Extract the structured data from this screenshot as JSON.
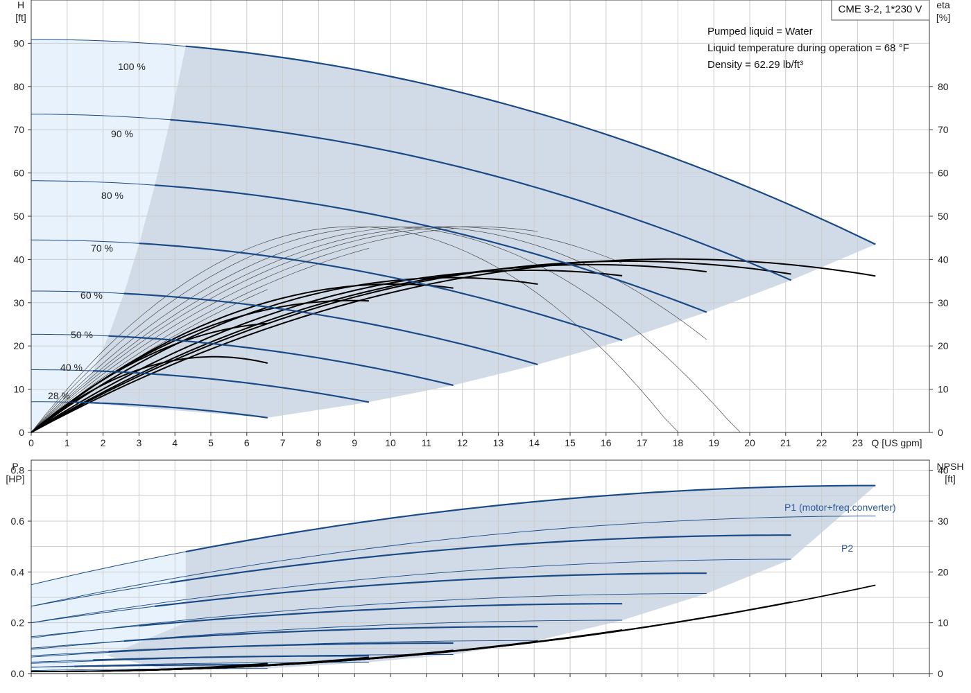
{
  "model_label": "CME 3-2, 1*230 V",
  "notes": [
    "Pumped liquid = Water",
    "Liquid temperature during operation = 68 °F",
    "Density = 62.29 lb/ft³"
  ],
  "colors": {
    "curve_blue": "#1a4a86",
    "fill_region": "#d1dbe7",
    "fill_light": "#e8f2fc",
    "grid": "#cccccc",
    "eff_black": "#000000",
    "p2_label": "#2a5a9a"
  },
  "chart_data": [
    {
      "type": "line",
      "title": "",
      "x_axis": {
        "label": "Q [US gpm]",
        "range": [
          0,
          25
        ],
        "ticks": [
          0,
          1,
          2,
          3,
          4,
          5,
          6,
          7,
          8,
          9,
          10,
          11,
          12,
          13,
          14,
          15,
          16,
          17,
          18,
          19,
          20,
          21,
          22,
          23
        ]
      },
      "y_left": {
        "label": [
          "H",
          "[ft]"
        ],
        "range": [
          0,
          100
        ],
        "ticks": [
          0,
          10,
          20,
          30,
          40,
          50,
          60,
          70,
          80,
          90
        ]
      },
      "y_right": {
        "label": [
          "eta",
          "[%]"
        ],
        "range": [
          0,
          100
        ],
        "ticks": [
          0,
          10,
          20,
          30,
          40,
          50,
          60,
          70,
          80
        ]
      },
      "head_curves": [
        {
          "speed": "100 %",
          "h0": 90.9,
          "qmax": 23.5,
          "hend": 43.5,
          "qlim": 4.3
        },
        {
          "speed": "90 %",
          "h0": 73.6,
          "qmax": 21.15,
          "hend": 35.2,
          "qlim": 3.87
        },
        {
          "speed": "80 %",
          "h0": 58.2,
          "qmax": 18.8,
          "hend": 27.8,
          "qlim": 3.44
        },
        {
          "speed": "70 %",
          "h0": 44.5,
          "qmax": 16.45,
          "hend": 21.3,
          "qlim": 3.01
        },
        {
          "speed": "60 %",
          "h0": 32.7,
          "qmax": 14.1,
          "hend": 15.7,
          "qlim": 2.58
        },
        {
          "speed": "50 %",
          "h0": 22.7,
          "qmax": 11.75,
          "hend": 10.9,
          "qlim": 2.15
        },
        {
          "speed": "40 %",
          "h0": 14.5,
          "qmax": 9.4,
          "hend": 7.0,
          "qlim": 1.72
        },
        {
          "speed": "28 %",
          "h0": 7.1,
          "qmax": 6.58,
          "hend": 3.4,
          "qlim": 1.2
        }
      ],
      "efficiency_curves": [
        {
          "qpk": 17.9,
          "peak": 40.1,
          "qend": 23.5,
          "eend": 35.0
        },
        {
          "qpk": 16.6,
          "peak": 39.6,
          "qend": 21.15,
          "eend": 34.3
        },
        {
          "qpk": 15.6,
          "peak": 38.8,
          "qend": 18.8,
          "eend": 33.6
        },
        {
          "qpk": 13.9,
          "peak": 37.5,
          "qend": 16.45,
          "eend": 31.9
        },
        {
          "qpk": 11.7,
          "peak": 35.8,
          "qend": 14.1,
          "eend": 29.9
        },
        {
          "qpk": 10.1,
          "peak": 34.3,
          "qend": 11.75,
          "eend": 26.9
        },
        {
          "qpk": 8.9,
          "peak": 30.5,
          "qend": 9.4,
          "eend": 22.3
        },
        {
          "qpk": 7.2,
          "peak": 25.4,
          "qend": 6.58,
          "eend": 15.3
        },
        {
          "qpk": 5.1,
          "peak": 17.5,
          "qend": 0,
          "eend": 0
        }
      ]
    },
    {
      "type": "line",
      "title": "",
      "x_axis": {
        "range": [
          0,
          25
        ]
      },
      "y_left": {
        "label": [
          "P",
          "[HP]"
        ],
        "range": [
          0,
          0.84
        ],
        "ticks": [
          "0.0",
          "0.2",
          "0.4",
          "0.6",
          "0.8"
        ]
      },
      "y_right": {
        "label": [
          "NPSH",
          "[ft]"
        ],
        "range": [
          0,
          42
        ],
        "ticks": [
          0,
          10,
          20,
          30,
          40
        ]
      },
      "series_labels": {
        "p1": "P1 (motor+freq.converter)",
        "p2": "P2"
      },
      "power_curves": [
        {
          "speed": "100 %",
          "p1_start": 0.35,
          "p1_end": 0.74,
          "p2_start": 0.265,
          "p2_end": 0.62,
          "qmax": 23.5,
          "qlim": 4.3
        },
        {
          "speed": "90 %",
          "p1_start": 0.265,
          "p1_end": 0.545,
          "p2_start": 0.2,
          "p2_end": 0.45,
          "qmax": 21.15,
          "qlim": 3.87
        },
        {
          "speed": "80 %",
          "p1_start": 0.2,
          "p1_end": 0.395,
          "p2_start": 0.14,
          "p2_end": 0.315,
          "qmax": 18.8,
          "qlim": 3.44
        },
        {
          "speed": "70 %",
          "p1_start": 0.145,
          "p1_end": 0.275,
          "p2_start": 0.095,
          "p2_end": 0.21,
          "qmax": 16.45,
          "qlim": 3.01
        },
        {
          "speed": "60 %",
          "p1_start": 0.1,
          "p1_end": 0.185,
          "p2_start": 0.065,
          "p2_end": 0.13,
          "qmax": 14.1,
          "qlim": 2.58
        },
        {
          "speed": "50 %",
          "p1_start": 0.07,
          "p1_end": 0.12,
          "p2_start": 0.04,
          "p2_end": 0.075,
          "qmax": 11.75,
          "qlim": 2.15
        },
        {
          "speed": "40 %",
          "p1_start": 0.045,
          "p1_end": 0.07,
          "p2_start": 0.025,
          "p2_end": 0.045,
          "qmax": 9.4,
          "qlim": 1.72
        },
        {
          "speed": "28 %",
          "p1_start": 0.025,
          "p1_end": 0.035,
          "p2_start": 0.012,
          "p2_end": 0.02,
          "qmax": 6.58,
          "qlim": 1.2
        }
      ],
      "npsh_curves": [
        {
          "qmax": 23.5,
          "end": 17.4
        },
        {
          "qmax": 21.15,
          "end": 14.1
        },
        {
          "qmax": 18.8,
          "end": 11.1
        },
        {
          "qmax": 16.45,
          "end": 8.6
        },
        {
          "qmax": 14.1,
          "end": 6.4
        },
        {
          "qmax": 11.75,
          "end": 4.6
        },
        {
          "qmax": 9.4,
          "end": 3.2
        },
        {
          "qmax": 6.58,
          "end": 2.0
        }
      ]
    }
  ]
}
